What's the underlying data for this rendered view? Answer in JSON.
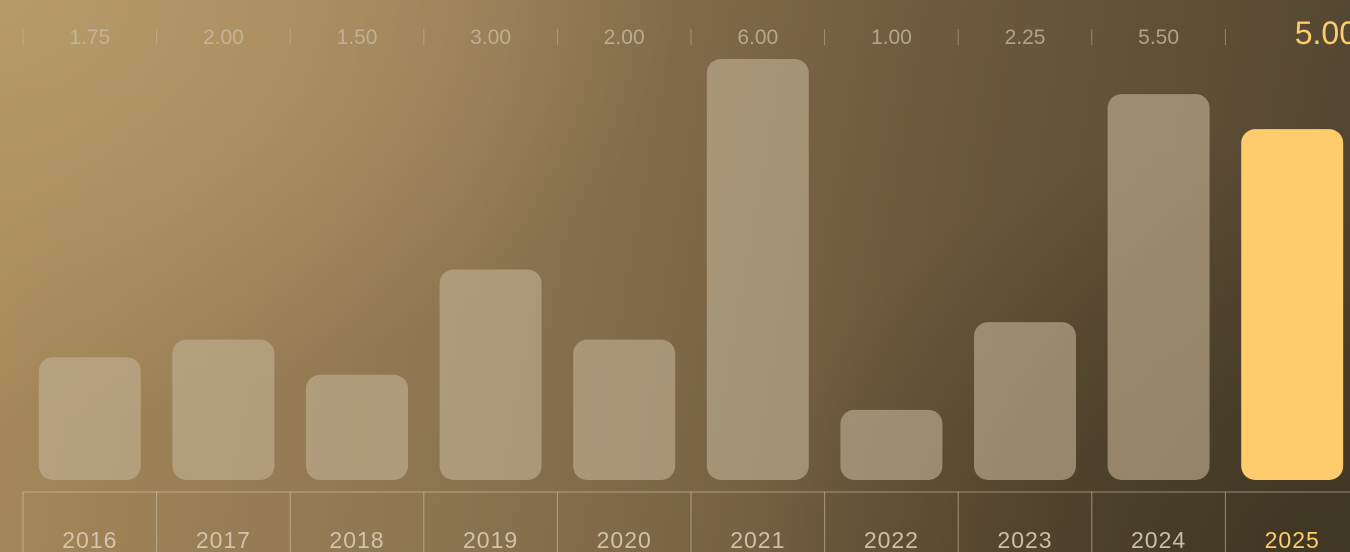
{
  "chart_data": {
    "type": "bar",
    "categories": [
      "2016",
      "2017",
      "2018",
      "2019",
      "2020",
      "2021",
      "2022",
      "2023",
      "2024",
      "2025"
    ],
    "values": [
      1.75,
      2.0,
      1.5,
      3.0,
      2.0,
      6.0,
      1.0,
      2.25,
      5.5,
      5.0
    ],
    "value_labels": [
      "1.75",
      "2.00",
      "1.50",
      "3.00",
      "2.00",
      "6.00",
      "1.00",
      "2.25",
      "5.50",
      "5.00"
    ],
    "highlight_index": 9,
    "ylim": [
      0,
      6
    ],
    "title": "",
    "xlabel": "",
    "ylabel": "",
    "grid": false,
    "colors": {
      "bar": "#c2b295",
      "highlight": "#ffcb6c",
      "label": "#c9bda7",
      "separator": "#d8ccb4"
    }
  }
}
